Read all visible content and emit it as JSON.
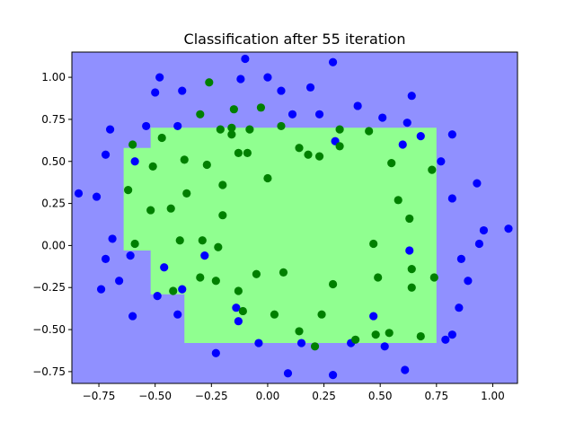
{
  "chart_data": {
    "type": "scatter",
    "title": "Classification after 55 iteration",
    "xlabel": "",
    "ylabel": "",
    "xlim": [
      -0.87,
      1.11
    ],
    "ylim": [
      -0.82,
      1.15
    ],
    "xticks": [
      -0.75,
      -0.5,
      -0.25,
      0.0,
      0.25,
      0.5,
      0.75,
      1.0
    ],
    "xtick_labels": [
      "−0.75",
      "−0.50",
      "−0.25",
      "0.00",
      "0.25",
      "0.50",
      "0.75",
      "1.00"
    ],
    "yticks": [
      -0.75,
      -0.5,
      -0.25,
      0.0,
      0.25,
      0.5,
      0.75,
      1.0
    ],
    "ytick_labels": [
      "−0.75",
      "−0.50",
      "−0.25",
      "0.00",
      "0.25",
      "0.50",
      "0.75",
      "1.00"
    ],
    "grid": false,
    "legend": "none",
    "colors": {
      "background_region": "#9090ff",
      "decision_region": "#90ff90",
      "class_blue": "#0000ff",
      "class_green": "#008000"
    },
    "decision_region_outline": [
      [
        -0.52,
        0.7
      ],
      [
        0.75,
        0.7
      ],
      [
        0.75,
        -0.58
      ],
      [
        -0.37,
        -0.58
      ],
      [
        -0.37,
        -0.29
      ],
      [
        -0.52,
        -0.29
      ],
      [
        -0.52,
        -0.03
      ],
      [
        -0.64,
        -0.03
      ],
      [
        -0.64,
        0.58
      ],
      [
        -0.52,
        0.58
      ]
    ],
    "series": [
      {
        "color": "#0000ff",
        "points": [
          [
            -0.84,
            0.31
          ],
          [
            -0.76,
            0.29
          ],
          [
            -0.72,
            0.54
          ],
          [
            -0.7,
            0.69
          ],
          [
            -0.69,
            0.04
          ],
          [
            -0.72,
            -0.08
          ],
          [
            -0.74,
            -0.26
          ],
          [
            -0.66,
            -0.21
          ],
          [
            -0.61,
            -0.06
          ],
          [
            -0.6,
            -0.42
          ],
          [
            -0.59,
            0.5
          ],
          [
            -0.54,
            0.71
          ],
          [
            -0.5,
            0.91
          ],
          [
            -0.48,
            1.0
          ],
          [
            -0.46,
            -0.13
          ],
          [
            -0.49,
            -0.3
          ],
          [
            -0.4,
            -0.41
          ],
          [
            -0.38,
            -0.26
          ],
          [
            -0.38,
            0.92
          ],
          [
            -0.4,
            0.71
          ],
          [
            -0.28,
            -0.06
          ],
          [
            -0.23,
            -0.64
          ],
          [
            -0.14,
            -0.37
          ],
          [
            -0.13,
            -0.45
          ],
          [
            -0.1,
            1.11
          ],
          [
            -0.12,
            0.99
          ],
          [
            -0.04,
            -0.58
          ],
          [
            0.0,
            1.0
          ],
          [
            0.06,
            0.92
          ],
          [
            0.09,
            -0.76
          ],
          [
            0.11,
            0.78
          ],
          [
            0.15,
            -0.58
          ],
          [
            0.19,
            0.94
          ],
          [
            0.23,
            0.78
          ],
          [
            0.29,
            1.09
          ],
          [
            0.29,
            -0.77
          ],
          [
            0.3,
            0.62
          ],
          [
            0.37,
            -0.58
          ],
          [
            0.4,
            0.83
          ],
          [
            0.47,
            -0.42
          ],
          [
            0.51,
            0.76
          ],
          [
            0.52,
            -0.6
          ],
          [
            0.6,
            0.6
          ],
          [
            0.61,
            -0.74
          ],
          [
            0.62,
            0.73
          ],
          [
            0.64,
            0.89
          ],
          [
            0.63,
            -0.03
          ],
          [
            0.68,
            0.65
          ],
          [
            0.77,
            0.5
          ],
          [
            0.79,
            -0.56
          ],
          [
            0.82,
            0.66
          ],
          [
            0.82,
            0.28
          ],
          [
            0.82,
            -0.53
          ],
          [
            0.85,
            -0.37
          ],
          [
            0.86,
            -0.08
          ],
          [
            0.89,
            -0.21
          ],
          [
            0.93,
            0.37
          ],
          [
            0.94,
            0.01
          ],
          [
            0.96,
            0.09
          ],
          [
            1.07,
            0.1
          ]
        ]
      },
      {
        "color": "#008000",
        "points": [
          [
            -0.6,
            0.6
          ],
          [
            -0.62,
            0.33
          ],
          [
            -0.59,
            0.01
          ],
          [
            -0.52,
            0.21
          ],
          [
            -0.51,
            0.47
          ],
          [
            -0.47,
            0.64
          ],
          [
            -0.43,
            0.22
          ],
          [
            -0.42,
            -0.27
          ],
          [
            -0.39,
            0.03
          ],
          [
            -0.37,
            0.51
          ],
          [
            -0.36,
            0.31
          ],
          [
            -0.3,
            0.78
          ],
          [
            -0.29,
            0.03
          ],
          [
            -0.3,
            -0.19
          ],
          [
            -0.27,
            0.48
          ],
          [
            -0.26,
            0.97
          ],
          [
            -0.23,
            -0.21
          ],
          [
            -0.22,
            -0.01
          ],
          [
            -0.21,
            0.69
          ],
          [
            -0.2,
            0.36
          ],
          [
            -0.2,
            0.18
          ],
          [
            -0.16,
            0.7
          ],
          [
            -0.16,
            0.66
          ],
          [
            -0.15,
            0.81
          ],
          [
            -0.13,
            0.55
          ],
          [
            -0.13,
            -0.27
          ],
          [
            -0.11,
            -0.39
          ],
          [
            -0.08,
            0.69
          ],
          [
            -0.09,
            0.55
          ],
          [
            -0.05,
            -0.17
          ],
          [
            -0.03,
            0.82
          ],
          [
            0.0,
            0.4
          ],
          [
            0.03,
            -0.41
          ],
          [
            0.06,
            0.71
          ],
          [
            0.07,
            -0.16
          ],
          [
            0.14,
            0.58
          ],
          [
            0.14,
            -0.51
          ],
          [
            0.18,
            0.54
          ],
          [
            0.21,
            -0.6
          ],
          [
            0.23,
            0.53
          ],
          [
            0.24,
            -0.41
          ],
          [
            0.29,
            -0.23
          ],
          [
            0.32,
            0.69
          ],
          [
            0.32,
            0.59
          ],
          [
            0.39,
            -0.56
          ],
          [
            0.45,
            0.68
          ],
          [
            0.47,
            0.01
          ],
          [
            0.48,
            -0.53
          ],
          [
            0.49,
            -0.19
          ],
          [
            0.54,
            -0.52
          ],
          [
            0.55,
            0.49
          ],
          [
            0.58,
            0.27
          ],
          [
            0.63,
            0.16
          ],
          [
            0.64,
            -0.14
          ],
          [
            0.64,
            -0.25
          ],
          [
            0.68,
            -0.54
          ],
          [
            0.73,
            0.45
          ],
          [
            0.74,
            -0.19
          ]
        ]
      }
    ]
  }
}
